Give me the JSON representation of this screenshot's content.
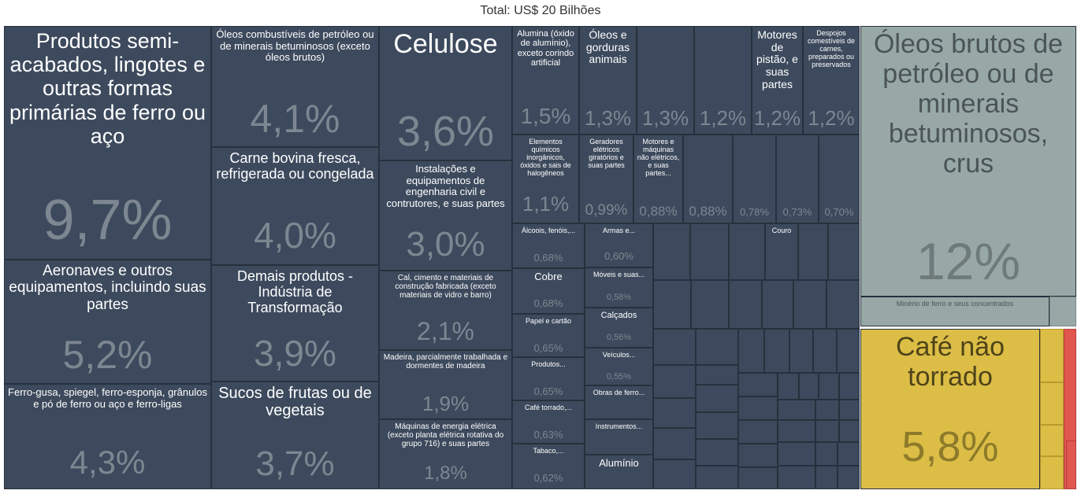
{
  "title": "Total: US$ 20 Bilhões",
  "colors": {
    "dark": "#3d4a5d",
    "dark_text": "#ffffff",
    "dark_pct": "#7d8791",
    "gray": "#98a8a7",
    "gray_text": "#4b5456",
    "gray_pct": "#6f7a7b",
    "gold": "#dcbd46",
    "gold_text": "#4e4419",
    "gold_pct": "#8d7a2a",
    "red": "#e0574f"
  },
  "chart_data": {
    "type": "treemap",
    "total_label": "Total: US$ 20 Bilhões",
    "groups": [
      {
        "color": "dark",
        "items": [
          {
            "label": "Produtos semi-acabados, lingotes e outras formas primárias de ferro ou aço",
            "value": "9,7%"
          },
          {
            "label": "Aeronaves e outros equipamentos, incluindo suas partes",
            "value": "5,2%"
          },
          {
            "label": "Ferro-gusa, spiegel, ferro-esponja, grânulos e pó de ferro ou aço e ferro-ligas",
            "value": "4,3%"
          },
          {
            "label": "Óleos combustíveis de petróleo ou de minerais betuminosos (exceto óleos brutos)",
            "value": "4,1%"
          },
          {
            "label": "Carne bovina fresca, refrigerada ou congelada",
            "value": "4,0%"
          },
          {
            "label": "Demais produtos - Indústria de Transformação",
            "value": "3,9%"
          },
          {
            "label": "Sucos de frutas ou de vegetais",
            "value": "3,7%"
          },
          {
            "label": "Celulose",
            "value": "3,6%"
          },
          {
            "label": "Instalações e equipamentos de engenharia civil e contrutores, e suas partes",
            "value": "3,0%"
          },
          {
            "label": "Cal, cimento e materiais de construção fabricada (exceto materiais de vidro e barro)",
            "value": "2,1%"
          },
          {
            "label": "Madeira, parcialmente trabalhada e dormentes de madeira",
            "value": "1,9%"
          },
          {
            "label": "Máquinas de energia elétrica (exceto planta elétrica rotativa do grupo 716) e suas partes",
            "value": "1,8%"
          },
          {
            "label": "Alumina (óxido de alumínio), exceto corindo artificial",
            "value": "1,5%"
          },
          {
            "label": "Óleos e gorduras animais",
            "value": "1,3%"
          },
          {
            "label": "",
            "value": "1,3%"
          },
          {
            "label": "",
            "value": "1,2%"
          },
          {
            "label": "Motores de pistão, e suas partes",
            "value": "1,2%"
          },
          {
            "label": "Despojos comestíveis de carnes, preparados ou preservados",
            "value": "1,2%"
          },
          {
            "label": "Elementos químicos inorgânicos, óxidos e sais de halogêneos",
            "value": "1,1%"
          },
          {
            "label": "Geradores elétricos giratórios e suas partes",
            "value": "0,99%"
          },
          {
            "label": "Motores e máquinas não elétricos, e suas partes...",
            "value": "0,88%"
          },
          {
            "label": "",
            "value": "0,88%"
          },
          {
            "label": "",
            "value": "0,78%"
          },
          {
            "label": "",
            "value": "0,73%"
          },
          {
            "label": "",
            "value": "0,70%"
          },
          {
            "label": "Álcoois, fenóis,...",
            "value": "0,68%"
          },
          {
            "label": "Cobre",
            "value": "0,68%"
          },
          {
            "label": "Papel e cartão",
            "value": "0,65%"
          },
          {
            "label": "Produtos...",
            "value": "0,65%"
          },
          {
            "label": "Café torrado,...",
            "value": "0,63%"
          },
          {
            "label": "Tabaco,...",
            "value": "0,62%"
          },
          {
            "label": "Armas e...",
            "value": "0,60%"
          },
          {
            "label": "Móveis e suas...",
            "value": "0,58%"
          },
          {
            "label": "Calçados",
            "value": "0,56%"
          },
          {
            "label": "Veículos...",
            "value": "0,55%"
          },
          {
            "label": "Obras de ferro...",
            "value": ""
          },
          {
            "label": "Instrumentos...",
            "value": ""
          },
          {
            "label": "Alumínio",
            "value": ""
          },
          {
            "label": "Couro",
            "value": ""
          }
        ]
      },
      {
        "color": "gray",
        "items": [
          {
            "label": "Óleos brutos de petróleo ou de minerais betuminosos, crus",
            "value": "12%"
          },
          {
            "label": "Minério de ferro e seus concentrados",
            "value": ""
          }
        ]
      },
      {
        "color": "gold",
        "items": [
          {
            "label": "Café não torrado",
            "value": "5,8%"
          }
        ]
      },
      {
        "color": "red",
        "items": []
      }
    ]
  }
}
